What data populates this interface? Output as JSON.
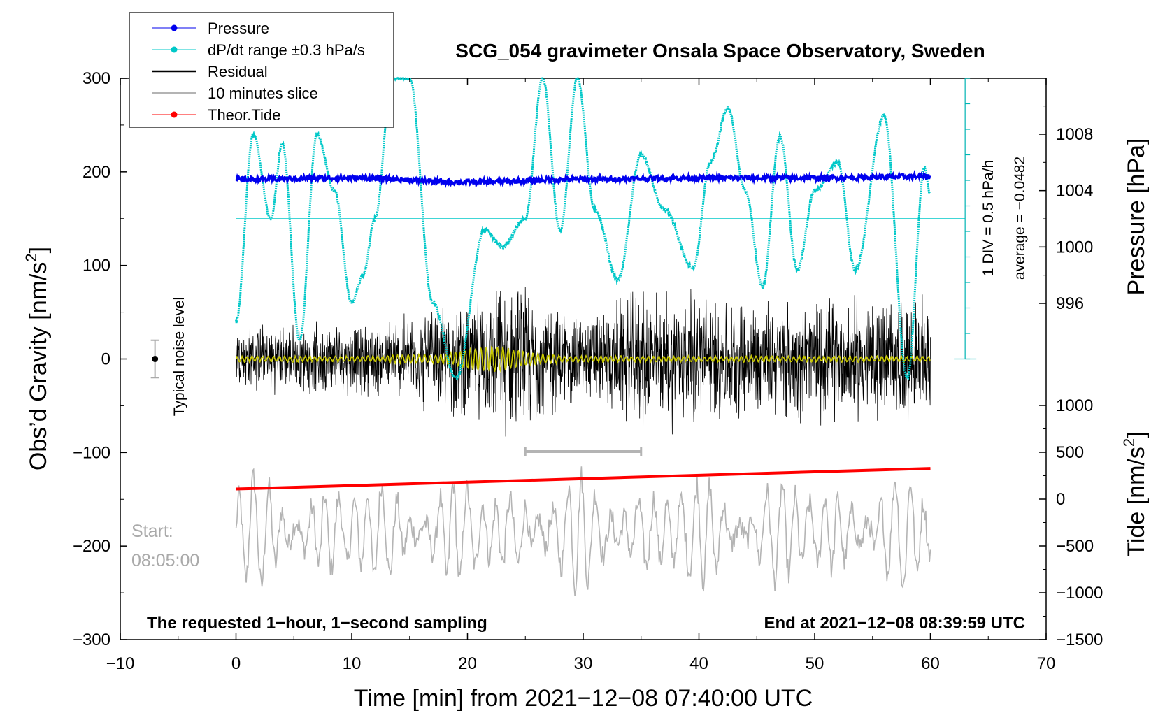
{
  "chart_data": {
    "type": "line",
    "title": "SCG_054 gravimeter Onsala Space Observatory, Sweden",
    "xlabel": "Time [min] from 2021−12−08 07:40:00 UTC",
    "ylabel_left": "Obs’d Gravity [nm/s",
    "ylabel_left_sup": "2",
    "ylabel_left_end": "]",
    "ylabel_right_top": "Pressure [hPa]",
    "ylabel_right_bottom": "Tide [nm/s",
    "ylabel_right_bottom_sup": "2",
    "ylabel_right_bottom_end": "]",
    "xlim": [
      -10,
      70
    ],
    "ylim_left": [
      -300,
      300
    ],
    "x_ticks": [
      -10,
      0,
      10,
      20,
      30,
      40,
      50,
      60,
      70
    ],
    "x_tick_labels": [
      "−10",
      "0",
      "10",
      "20",
      "30",
      "40",
      "50",
      "60",
      "70"
    ],
    "y_left_ticks": [
      300,
      200,
      100,
      0,
      -100,
      -200,
      -300
    ],
    "y_left_tick_labels": [
      "300",
      "200",
      "100",
      "0",
      "−100",
      "−200",
      "−300"
    ],
    "pressure_ticks": [
      1008,
      1004,
      1000,
      996
    ],
    "pressure_tick_labels": [
      "1008",
      "1004",
      "1000",
      "996"
    ],
    "tide_ticks": [
      1000,
      500,
      0,
      -500,
      -1000,
      -1500
    ],
    "tide_tick_labels": [
      "1000",
      "500",
      "0",
      "−500",
      "−1000",
      "−1500"
    ],
    "legend_position": "top-left",
    "legend": [
      {
        "label": "Pressure",
        "color": "#0000ee",
        "marker": true
      },
      {
        "label": "dP/dt range ±0.3 hPa/s",
        "color": "#00c8c8",
        "marker": true
      },
      {
        "label": "Residual",
        "color": "#000000",
        "marker": false
      },
      {
        "label": "10 minutes slice",
        "color": "#b4b4b4",
        "marker": false
      },
      {
        "label": "Theor.Tide",
        "color": "#ff0000",
        "marker": true
      }
    ],
    "annotations": {
      "noise_label": "Typical noise level",
      "noise_range": [
        -20,
        20
      ],
      "scale_div_label": "1 DIV = 0.5 hPa/h",
      "average_label": "average = −0.0482",
      "requested_label": "The requested 1−hour, 1−second sampling",
      "end_label": "End at 2021−12−08 08:39:59 UTC",
      "start_label": "Start:",
      "start_time": "08:05:00",
      "slice_range_min": [
        25,
        35
      ]
    },
    "series": [
      {
        "name": "Pressure",
        "color": "#0000ee",
        "unit": "hPa",
        "x": [
          0,
          10,
          20,
          30,
          40,
          50,
          60
        ],
        "y": [
          1004.8,
          1004.9,
          1004.6,
          1004.8,
          1004.9,
          1004.9,
          1005.0
        ]
      },
      {
        "name": "dP/dt (gravity-axis units)",
        "color": "#00c8c8",
        "x": [
          0,
          1.5,
          3,
          4,
          5.5,
          7,
          8.5,
          10,
          11,
          12,
          13.5,
          15,
          17,
          19,
          21.5,
          23,
          25,
          26.5,
          28,
          29.5,
          31,
          33,
          35,
          37,
          39.5,
          41,
          42.5,
          44,
          45.5,
          47,
          48.5,
          50,
          52,
          53.5,
          56,
          58,
          59.5,
          60
        ],
        "y": [
          40,
          240,
          150,
          230,
          20,
          240,
          180,
          60,
          90,
          150,
          300,
          300,
          60,
          -20,
          138,
          120,
          150,
          300,
          137,
          300,
          160,
          85,
          218,
          160,
          97,
          210,
          268,
          180,
          78,
          238,
          95,
          180,
          210,
          95,
          260,
          -20,
          205,
          176
        ]
      },
      {
        "name": "Residual",
        "color": "#000000",
        "envelope": [
          {
            "x": 0,
            "amp": 40
          },
          {
            "x": 10,
            "amp": 42
          },
          {
            "x": 20,
            "amp": 68
          },
          {
            "x": 24,
            "amp": 90
          },
          {
            "x": 30,
            "amp": 55
          },
          {
            "x": 36,
            "amp": 85
          },
          {
            "x": 45,
            "amp": 70
          },
          {
            "x": 55,
            "amp": 75
          },
          {
            "x": 60,
            "amp": 70
          }
        ]
      },
      {
        "name": "10 minutes slice",
        "color": "#b4b4b4",
        "baseline": -185,
        "amplitude": 60
      },
      {
        "name": "Residual smoothed",
        "color": "#c8c800",
        "amplitude": 10
      },
      {
        "name": "Theor.Tide",
        "color": "#ff0000",
        "x": [
          0,
          60
        ],
        "y": [
          -139,
          -117
        ]
      }
    ]
  }
}
